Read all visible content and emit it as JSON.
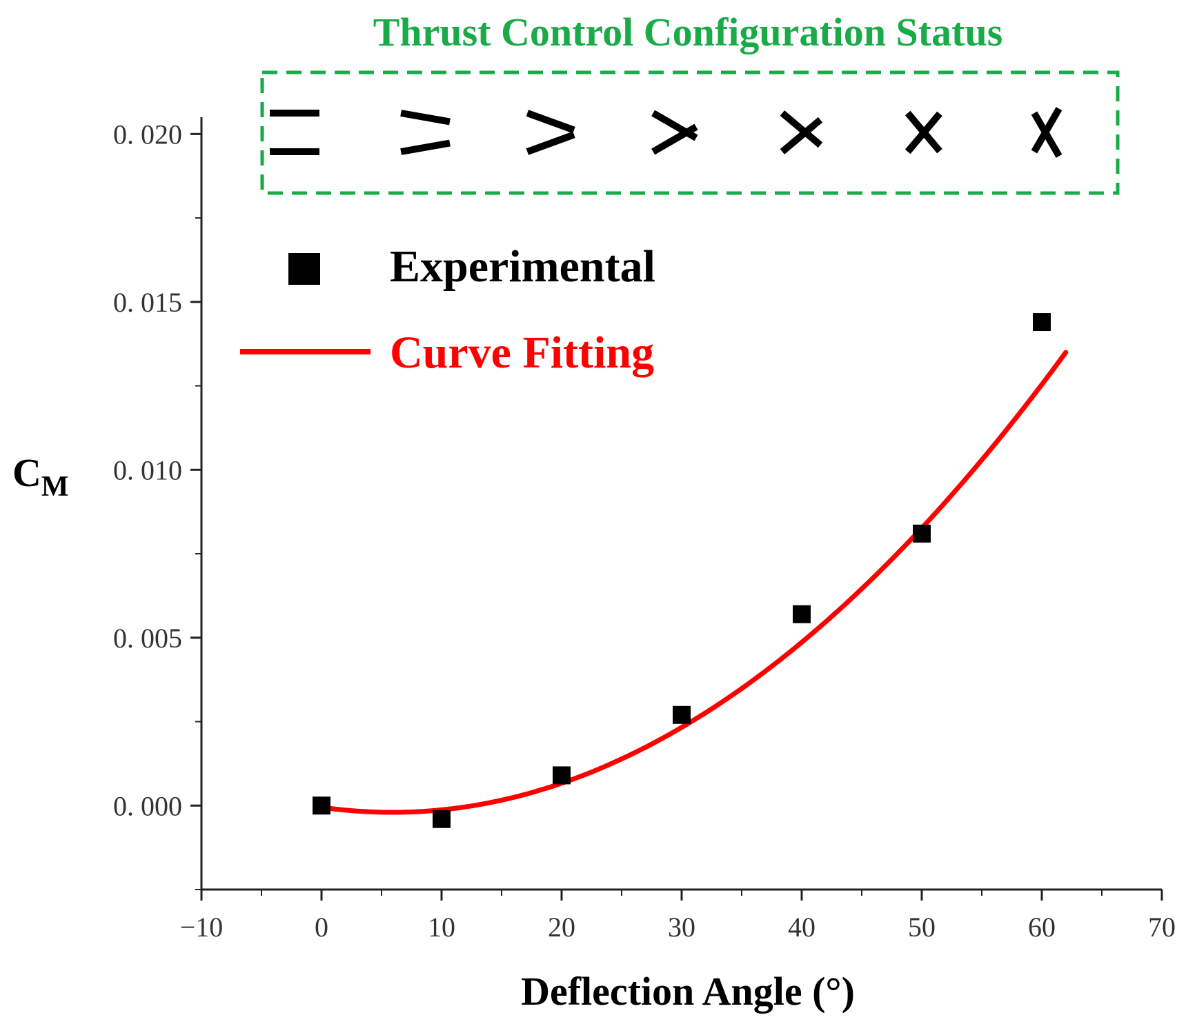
{
  "colors": {
    "fit_line": "#ff0000",
    "title_green": "#1aab48",
    "marker": "#000000",
    "axis": "#222222"
  },
  "chart_data": {
    "type": "scatter",
    "title": "Thrust Control Configuration Status",
    "xlabel": "Deflection Angle (°)",
    "ylabel_main": "C",
    "ylabel_sub": "M",
    "xlim": [
      -10,
      70
    ],
    "ylim": [
      -0.0025,
      0.0205
    ],
    "x_ticks": [
      -10,
      0,
      10,
      20,
      30,
      40,
      50,
      60,
      70
    ],
    "x_tick_labels": [
      "−10",
      "0",
      "10",
      "20",
      "30",
      "40",
      "50",
      "60",
      "70"
    ],
    "y_ticks": [
      0.0,
      0.005,
      0.01,
      0.015,
      0.02
    ],
    "y_tick_labels": [
      "0. 000",
      "0. 005",
      "0. 010",
      "0. 015",
      "0. 020"
    ],
    "legend": {
      "placement": "upper-left",
      "experimental_label": "Experimental",
      "fit_label": "Curve Fitting"
    },
    "series": [
      {
        "name": "Experimental",
        "kind": "markers",
        "x": [
          0,
          10,
          20,
          30,
          40,
          50,
          60
        ],
        "y": [
          0.0,
          -0.0004,
          0.0009,
          0.0027,
          0.0057,
          0.0081,
          0.0144
        ]
      },
      {
        "name": "Curve Fitting",
        "kind": "line",
        "model": "quadratic",
        "coefficients": {
          "a": 4.35e-06,
          "b": -5.12e-05,
          "c": -5e-05
        },
        "x_range": [
          0,
          62
        ]
      }
    ],
    "configuration_icons": [
      {
        "name": "deflection-0-icon",
        "angle_deg": 0
      },
      {
        "name": "deflection-10-icon",
        "angle_deg": 10
      },
      {
        "name": "deflection-20-icon",
        "angle_deg": 20
      },
      {
        "name": "deflection-30-icon",
        "angle_deg": 30
      },
      {
        "name": "deflection-40-icon",
        "angle_deg": 40
      },
      {
        "name": "deflection-50-icon",
        "angle_deg": 50
      },
      {
        "name": "deflection-60-icon",
        "angle_deg": 60
      }
    ]
  }
}
